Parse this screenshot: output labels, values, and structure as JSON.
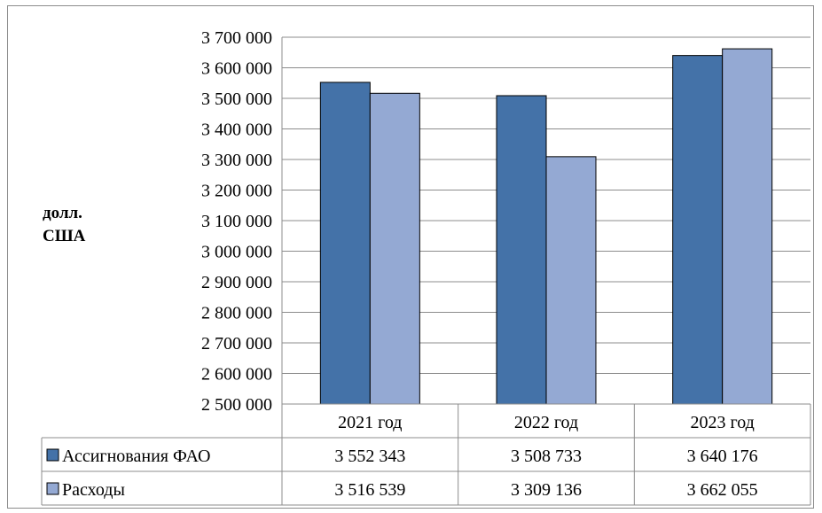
{
  "chart_data": {
    "type": "bar",
    "ylabel_lines": [
      "долл.",
      "США"
    ],
    "categories": [
      "2021 год",
      "2022 год",
      "2023 год"
    ],
    "series": [
      {
        "name": "Ассигнования ФАО",
        "values": [
          3552343,
          3508733,
          3640176
        ],
        "labels": [
          "3 552 343",
          "3 508 733",
          "3 640 176"
        ],
        "color": "#4472a8"
      },
      {
        "name": "Расходы",
        "values": [
          3516539,
          3309136,
          3662055
        ],
        "labels": [
          "3 516 539",
          "3 309 136",
          "3 662 055"
        ],
        "color": "#94a9d3"
      }
    ],
    "ylim": [
      2500000,
      3700000
    ],
    "yticks": [
      2500000,
      2600000,
      2700000,
      2800000,
      2900000,
      3000000,
      3100000,
      3200000,
      3300000,
      3400000,
      3500000,
      3600000,
      3700000
    ],
    "ytick_labels": [
      "2 500 000",
      "2 600 000",
      "2 700 000",
      "2 800 000",
      "2 900 000",
      "3 000 000",
      "3 100 000",
      "3 200 000",
      "3 300 000",
      "3 400 000",
      "3 500 000",
      "3 600 000",
      "3 700 000"
    ],
    "grid": true,
    "legend": "data-table"
  }
}
